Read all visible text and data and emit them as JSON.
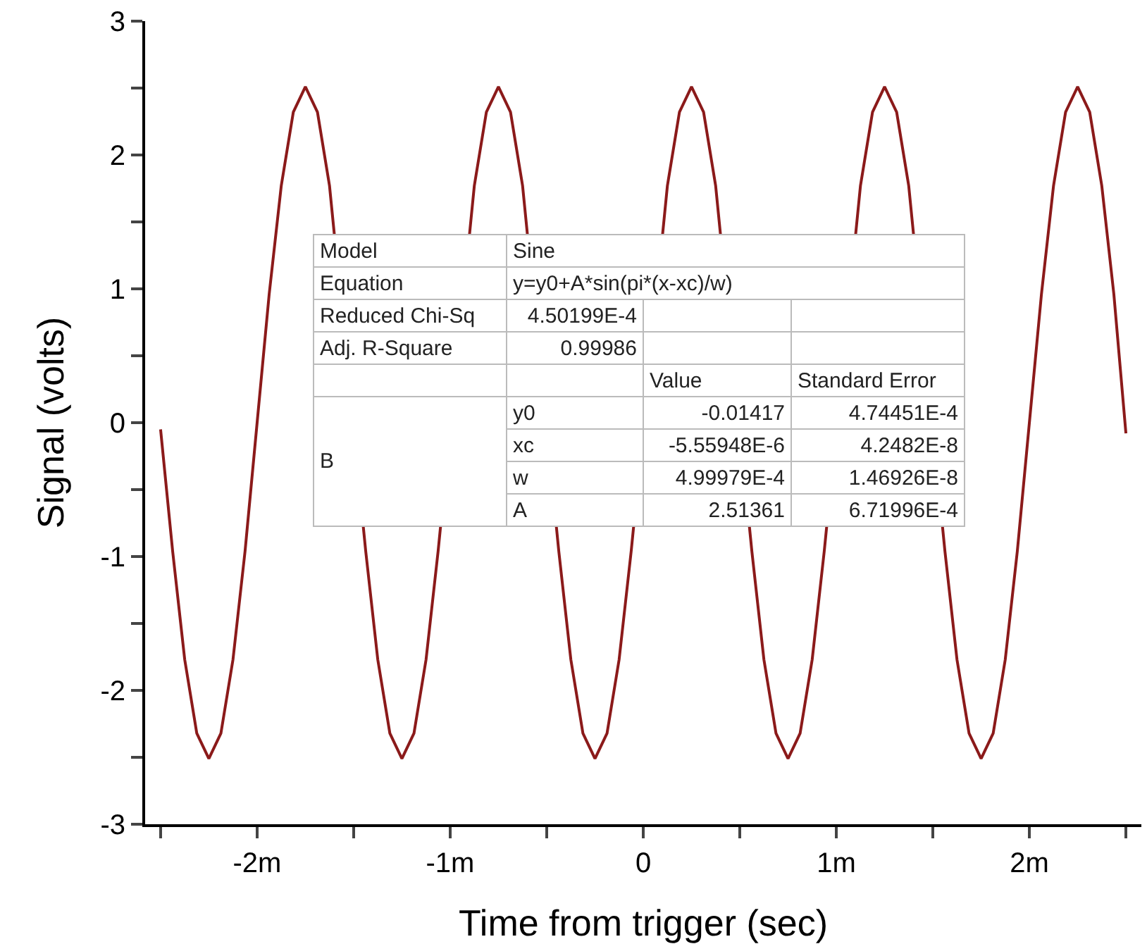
{
  "chart_data": {
    "type": "line",
    "xlabel": "Time from trigger (sec)",
    "ylabel": "Signal (volts)",
    "x": [
      -2.5,
      -2.4375,
      -2.375,
      -2.3125,
      -2.25,
      -2.1875,
      -2.125,
      -2.0625,
      -2,
      -1.9375,
      -1.875,
      -1.8125,
      -1.75,
      -1.6875,
      -1.625,
      -1.5625,
      -1.5,
      -1.4375,
      -1.375,
      -1.3125,
      -1.25,
      -1.1875,
      -1.125,
      -1.0625,
      -1,
      -0.9375,
      -0.875,
      -0.8125,
      -0.75,
      -0.6875,
      -0.625,
      -0.5625,
      -0.5,
      -0.4375,
      -0.375,
      -0.3125,
      -0.25,
      -0.1875,
      -0.125,
      -0.0625,
      0,
      0.0625,
      0.125,
      0.1875,
      0.25,
      0.3125,
      0.375,
      0.4375,
      0.5,
      0.5625,
      0.625,
      0.6875,
      0.75,
      0.8125,
      0.875,
      0.9375,
      1,
      1.0625,
      1.125,
      1.1875,
      1.25,
      1.3125,
      1.375,
      1.4375,
      1.5,
      1.5625,
      1.625,
      1.6875,
      1.75,
      1.8125,
      1.875,
      1.9375,
      2,
      2.0625,
      2.125,
      2.1875,
      2.25,
      2.3125,
      2.375,
      2.4375,
      2.5
    ],
    "series": [
      {
        "color": "#8b1a1a",
        "values": [
          -0.05,
          -0.96,
          -1.77,
          -2.32,
          -2.51,
          -2.32,
          -1.77,
          -0.96,
          0,
          0.96,
          1.77,
          2.32,
          2.51,
          2.32,
          1.77,
          null,
          null,
          -0.96,
          -1.77,
          -2.32,
          -2.51,
          -2.32,
          -1.77,
          -0.96,
          null,
          null,
          1.77,
          2.32,
          2.51,
          2.32,
          1.77,
          null,
          null,
          -0.96,
          -1.77,
          -2.32,
          -2.51,
          -2.32,
          -1.77,
          -0.96,
          null,
          null,
          1.77,
          2.32,
          2.51,
          2.32,
          1.77,
          null,
          null,
          -0.96,
          -1.77,
          -2.32,
          -2.51,
          -2.32,
          -1.77,
          -0.96,
          null,
          null,
          1.77,
          2.32,
          2.51,
          2.32,
          1.77,
          null,
          null,
          -0.96,
          -1.77,
          -2.32,
          -2.51,
          -2.32,
          -1.77,
          -0.96,
          0,
          0.96,
          1.77,
          2.32,
          2.51,
          2.32,
          1.77,
          0.96,
          -0.08
        ]
      }
    ],
    "xlim": [
      -2.58,
      2.58
    ],
    "xticks": [
      {
        "value": -2.5,
        "label": null
      },
      {
        "value": -2,
        "label": "-2m"
      },
      {
        "value": -1.5,
        "label": null
      },
      {
        "value": -1,
        "label": "-1m"
      },
      {
        "value": -0.5,
        "label": null
      },
      0,
      {
        "value": 0.5,
        "label": null
      },
      {
        "value": 1,
        "label": "1m"
      },
      {
        "value": 1.5,
        "label": null
      },
      {
        "value": 2,
        "label": "2m"
      },
      {
        "value": 2.5,
        "label": null
      }
    ],
    "ylim": [
      -3,
      3
    ],
    "yticks": [
      -3,
      {
        "value": -2.5,
        "label": null
      },
      -2,
      {
        "value": -1.5,
        "label": null
      },
      -1,
      {
        "value": -0.5,
        "label": null
      },
      0,
      {
        "value": 0.5,
        "label": null
      },
      1,
      {
        "value": 1.5,
        "label": null
      },
      2,
      {
        "value": 2.5,
        "label": null
      },
      3
    ],
    "marker": "none",
    "line_style": "solid",
    "annotations": [
      "Model",
      "Sine",
      "Equation",
      "y=y0+A*sin(pi*(x-xc)/w)",
      "Reduced Chi-Sq",
      "4.50199E-4",
      "Adj. R-Square",
      "0.99986",
      "Value",
      "Standard Error",
      "B",
      "y0",
      "-0.01417",
      "4.74451E-4",
      "xc",
      "-5.55948E-6",
      "4.2482E-8",
      "w",
      "4.99979E-4",
      "1.46926E-8",
      "A",
      "2.51361",
      "6.71996E-4"
    ]
  }
}
